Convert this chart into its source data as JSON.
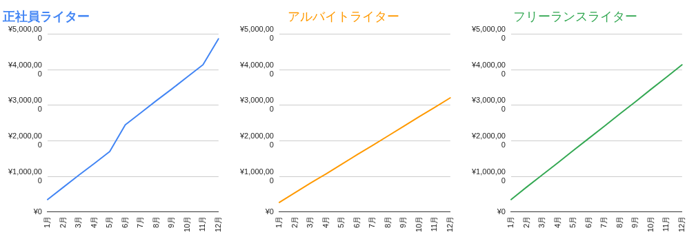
{
  "chart_data": [
    {
      "type": "line",
      "title": "正社員ライター",
      "categories": [
        "1月",
        "2月",
        "3月",
        "4月",
        "5月",
        "6月",
        "7月",
        "8月",
        "9月",
        "10月",
        "11月",
        "12月"
      ],
      "series": [
        {
          "color": "#4285f4",
          "values": [
            350000,
            690000,
            1030000,
            1360000,
            1700000,
            2450000,
            2790000,
            3130000,
            3460000,
            3800000,
            4140000,
            4870000
          ]
        }
      ],
      "ylim": [
        0,
        5000000
      ],
      "yticks": [
        {
          "value": 0,
          "label": "¥0"
        },
        {
          "value": 1000000,
          "label": "¥1,000,000"
        },
        {
          "value": 2000000,
          "label": "¥2,000,000"
        },
        {
          "value": 3000000,
          "label": "¥3,000,000"
        },
        {
          "value": 4000000,
          "label": "¥4,000,000"
        },
        {
          "value": 5000000,
          "label": "¥5,000,000"
        }
      ],
      "grid": "y",
      "legend": false,
      "marker": "none"
    },
    {
      "type": "line",
      "title": "アルバイトライター",
      "categories": [
        "1月",
        "2月",
        "3月",
        "4月",
        "5月",
        "6月",
        "7月",
        "8月",
        "9月",
        "10月",
        "11月",
        "12月"
      ],
      "series": [
        {
          "color": "#ff9900",
          "values": [
            270000,
            540000,
            810000,
            1070000,
            1340000,
            1610000,
            1870000,
            2140000,
            2410000,
            2680000,
            2940000,
            3210000
          ]
        }
      ],
      "ylim": [
        0,
        5000000
      ],
      "yticks": [
        {
          "value": 0,
          "label": "¥0"
        },
        {
          "value": 1000000,
          "label": "¥1,000,000"
        },
        {
          "value": 2000000,
          "label": "¥2,000,000"
        },
        {
          "value": 3000000,
          "label": "¥3,000,000"
        },
        {
          "value": 4000000,
          "label": "¥4,000,000"
        },
        {
          "value": 5000000,
          "label": "¥5,000,000"
        }
      ],
      "grid": "y",
      "legend": false,
      "marker": "none"
    },
    {
      "type": "line",
      "title": "フリーランスライター",
      "categories": [
        "1月",
        "2月",
        "3月",
        "4月",
        "5月",
        "6月",
        "7月",
        "8月",
        "9月",
        "10月",
        "11月",
        "12月"
      ],
      "series": [
        {
          "color": "#34a853",
          "values": [
            350000,
            700000,
            1040000,
            1380000,
            1730000,
            2070000,
            2410000,
            2760000,
            3100000,
            3450000,
            3790000,
            4140000
          ]
        }
      ],
      "ylim": [
        0,
        5000000
      ],
      "yticks": [
        {
          "value": 0,
          "label": "¥0"
        },
        {
          "value": 1000000,
          "label": "¥1,000,000"
        },
        {
          "value": 2000000,
          "label": "¥2,000,000"
        },
        {
          "value": 3000000,
          "label": "¥3,000,000"
        },
        {
          "value": 4000000,
          "label": "¥4,000,000"
        },
        {
          "value": 5000000,
          "label": "¥5,000,000"
        }
      ],
      "grid": "y",
      "legend": false,
      "marker": "none"
    }
  ]
}
